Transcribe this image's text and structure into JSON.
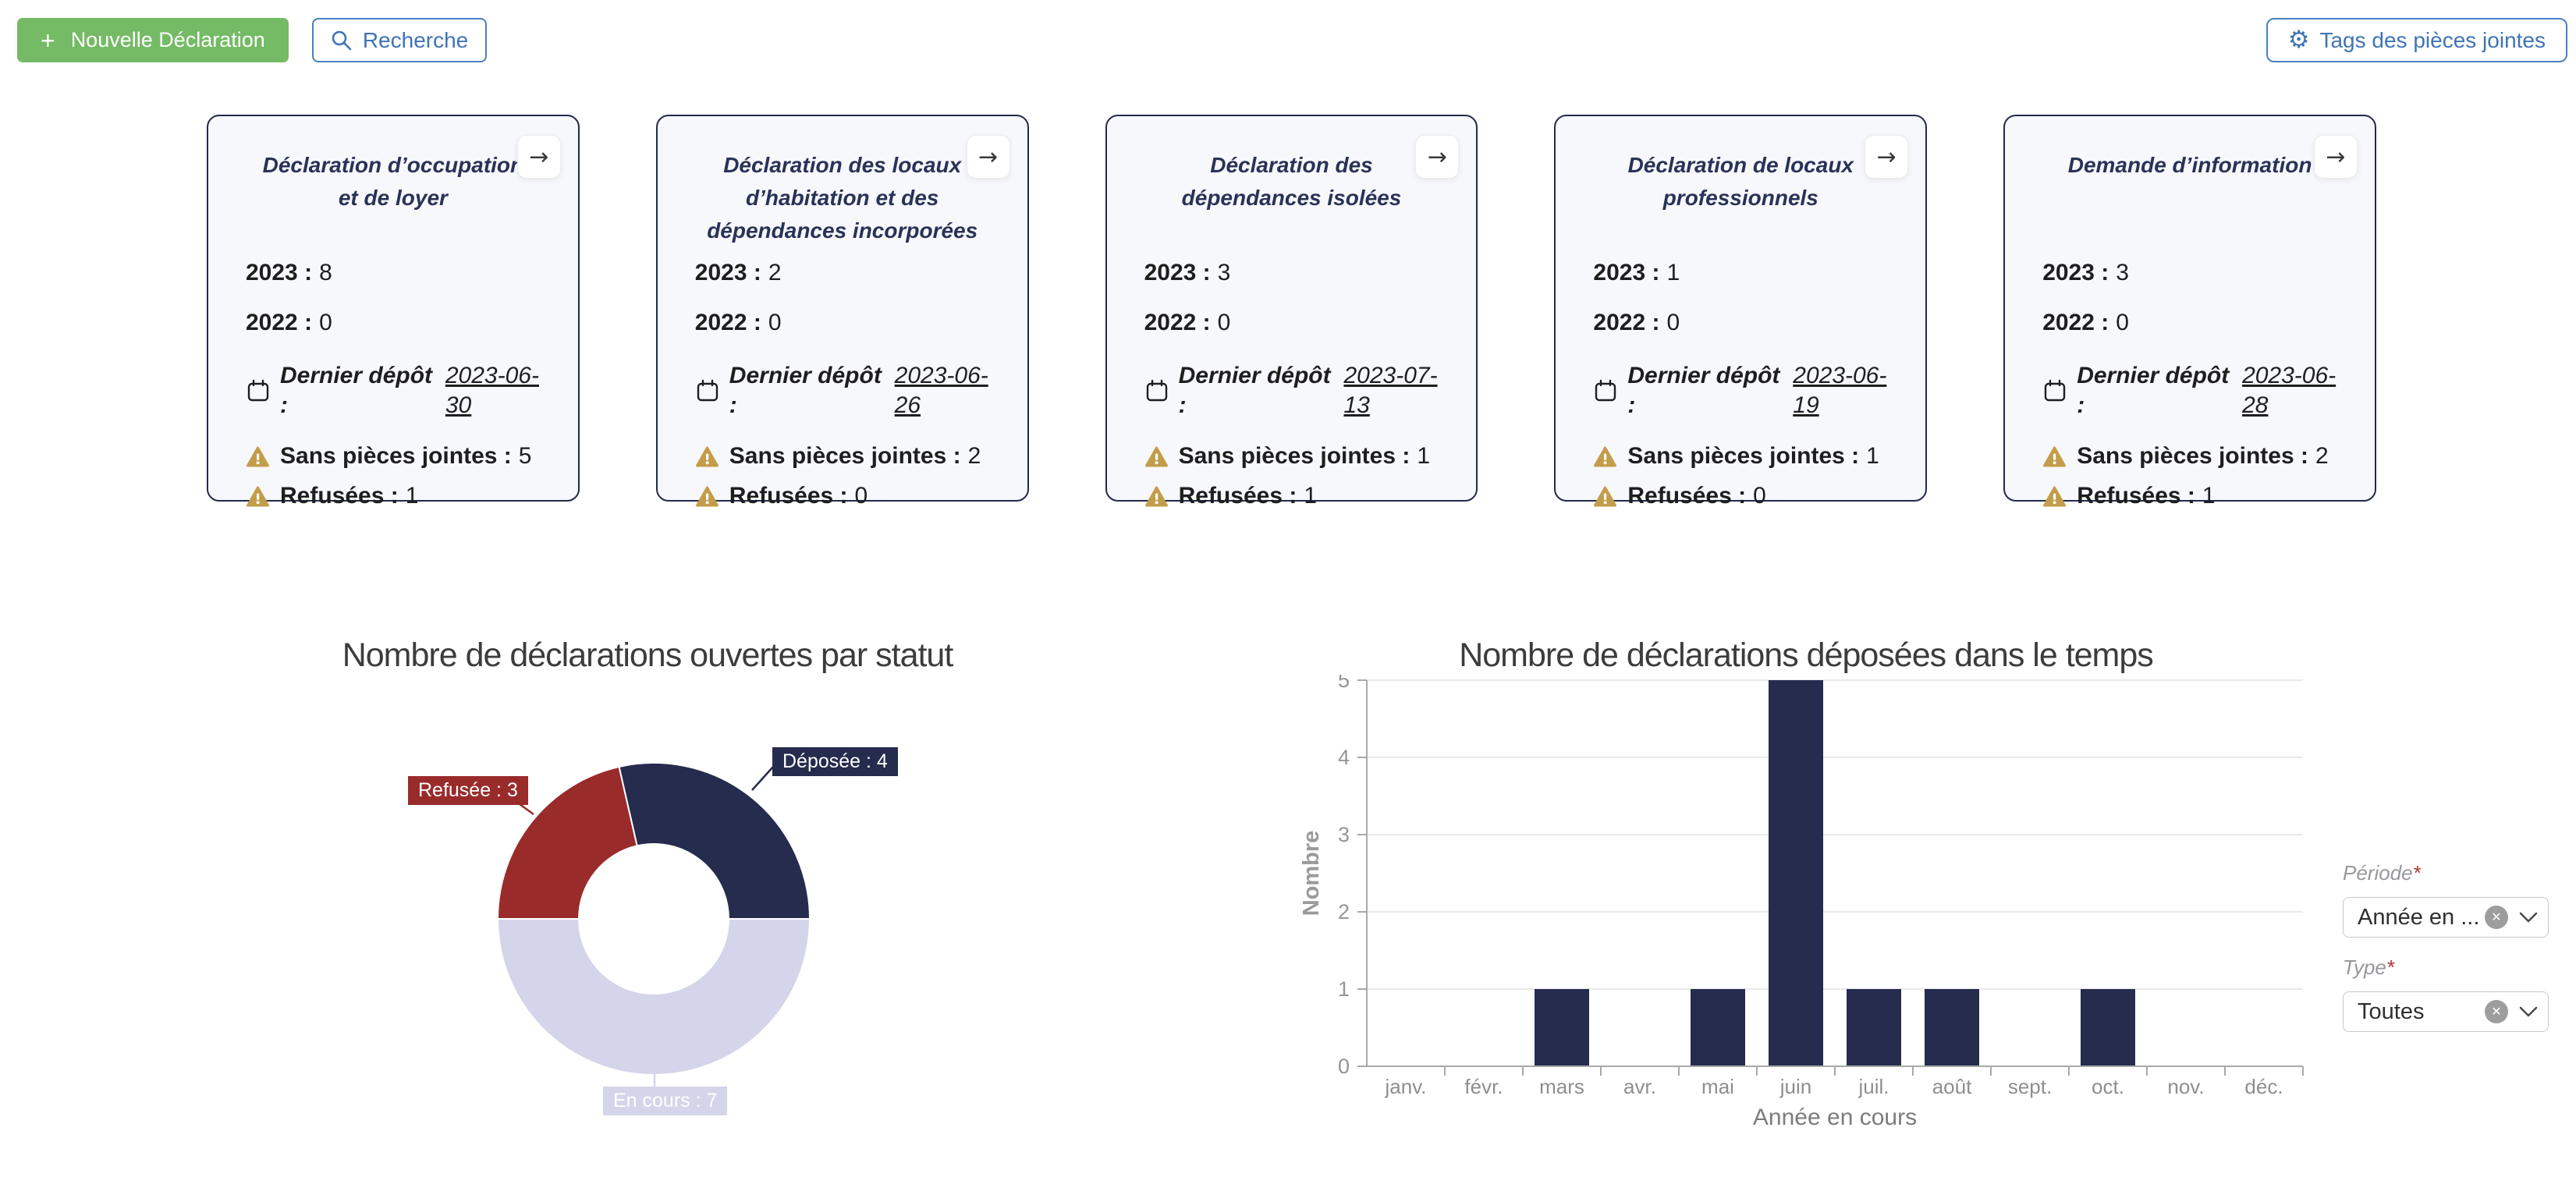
{
  "toolbar": {
    "plus_icon": "+",
    "new_declaration_label": "Nouvelle Déclaration",
    "search_label": "Recherche",
    "tags_label": "Tags des pièces jointes"
  },
  "card_labels": {
    "year_2023": "2023 :",
    "year_2022": "2022 :",
    "last_deposit": "Dernier dépôt :",
    "no_attachments": "Sans pièces jointes :",
    "refused": "Refusées :",
    "open_arrow": "→"
  },
  "cards": [
    {
      "title": "Déclaration d’occupation et de loyer",
      "count_2023": "8",
      "count_2022": "0",
      "last_deposit_date": "2023-06-30",
      "no_attachments": "5",
      "refused": "1"
    },
    {
      "title": "Déclaration des locaux d’habitation et des dépendances incorporées",
      "count_2023": "2",
      "count_2022": "0",
      "last_deposit_date": "2023-06-26",
      "no_attachments": "2",
      "refused": "0"
    },
    {
      "title": "Déclaration des dépendances isolées",
      "count_2023": "3",
      "count_2022": "0",
      "last_deposit_date": "2023-07-13",
      "no_attachments": "1",
      "refused": "1"
    },
    {
      "title": "Déclaration de locaux professionnels",
      "count_2023": "1",
      "count_2022": "0",
      "last_deposit_date": "2023-06-19",
      "no_attachments": "1",
      "refused": "0"
    },
    {
      "title": "Demande d’information",
      "count_2023": "3",
      "count_2022": "0",
      "last_deposit_date": "2023-06-28",
      "no_attachments": "2",
      "refused": "1"
    }
  ],
  "filters": {
    "periode": {
      "label": "Période",
      "required_mark": "*",
      "value": "Année en ..."
    },
    "type": {
      "label": "Type",
      "required_mark": "*",
      "value": "Toutes"
    }
  },
  "colors": {
    "navy": "#252c4e",
    "red": "#9a2b2b",
    "lavender": "#d4d5ea",
    "gold": "#c49d4a",
    "green": "#75ba65",
    "blue": "#3a72b8"
  },
  "chart_data": [
    {
      "type": "pie",
      "donut": true,
      "title": "Nombre de déclarations ouvertes par statut",
      "segments": [
        {
          "label": "Déposée",
          "slug": "deposee",
          "value": 4,
          "color": "#252c4e"
        },
        {
          "label": "En cours",
          "slug": "en-cours",
          "value": 7,
          "color": "#d4d5ea"
        },
        {
          "label": "Refusée",
          "slug": "refusee",
          "value": 3,
          "color": "#9a2b2b"
        }
      ],
      "start_angle_deg": -12.86,
      "inner_radius_ratio": 0.48,
      "annotations": [
        "Déposée : 4",
        "Refusée : 3",
        "En cours : 7"
      ]
    },
    {
      "type": "bar",
      "title": "Nombre de déclarations déposées dans le temps",
      "categories": [
        "janv.",
        "févr.",
        "mars",
        "avr.",
        "mai",
        "juin",
        "juil.",
        "août",
        "sept.",
        "oct.",
        "nov.",
        "déc."
      ],
      "values": [
        0,
        0,
        1,
        0,
        1,
        5,
        1,
        1,
        0,
        1,
        0,
        0
      ],
      "xlabel": "Année en cours",
      "ylabel": "Nombre",
      "ylim": [
        0,
        5
      ],
      "yticks": [
        0,
        1,
        2,
        3,
        4,
        5
      ],
      "bar_color": "#252c4e",
      "grid": true,
      "legend": false
    }
  ]
}
